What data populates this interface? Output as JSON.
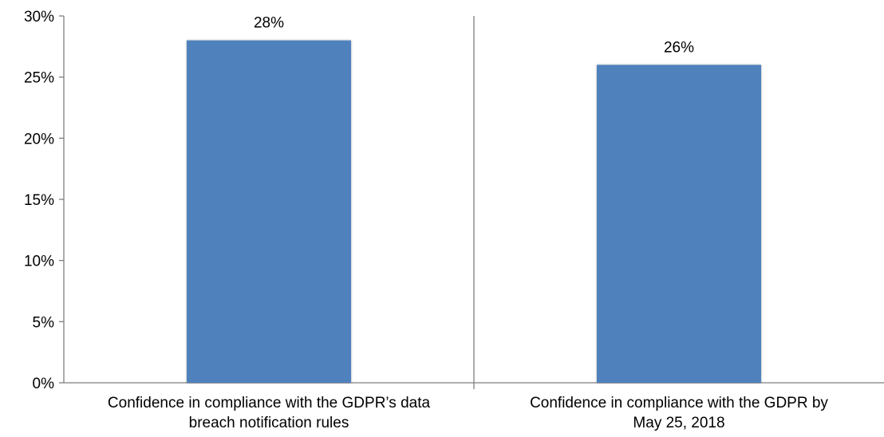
{
  "chart_data": {
    "type": "bar",
    "categories": [
      [
        "Confidence in compliance with the GDPR’s data",
        "breach notification rules"
      ],
      [
        "Confidence in compliance with the GDPR by",
        "May 25, 2018"
      ]
    ],
    "values": [
      28,
      26
    ],
    "data_labels": [
      "28%",
      "26%"
    ],
    "ylim": [
      0,
      30
    ],
    "yticks": [
      0,
      5,
      10,
      15,
      20,
      25,
      30
    ],
    "ytick_labels": [
      "0%",
      "5%",
      "10%",
      "15%",
      "20%",
      "25%",
      "30%"
    ],
    "bar_color": "#4F81BD",
    "grid": false,
    "legend": "none"
  }
}
